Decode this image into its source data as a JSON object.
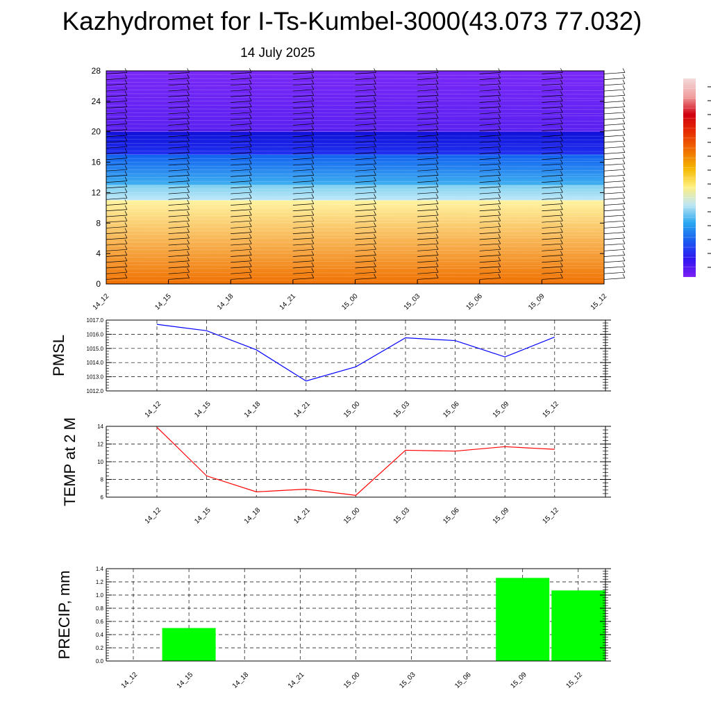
{
  "title": "Kazhydromet for I-Ts-Kumbel-3000(43.073 77.032)",
  "date": "14 July 2025",
  "time_labels": [
    "14_12",
    "14_15",
    "14_18",
    "14_21",
    "15_00",
    "15_03",
    "15_06",
    "15_09",
    "15_12"
  ],
  "chart_data": [
    {
      "type": "heatmap",
      "panel": "cross-section",
      "x": [
        "14_12",
        "14_15",
        "14_18",
        "14_21",
        "15_00",
        "15_03",
        "15_06",
        "15_09",
        "15_12"
      ],
      "ylim": [
        0,
        28
      ],
      "yticks": [
        0,
        4,
        8,
        12,
        16,
        20,
        24,
        28
      ],
      "color_bands": [
        {
          "from": 0,
          "to": 11,
          "color_bottom": "#f07000",
          "color_top": "#fff4a0"
        },
        {
          "from": 11,
          "to": 13,
          "color_bottom": "#bfe8f8",
          "color_top": "#7fd0f0"
        },
        {
          "from": 13,
          "to": 17,
          "color_bottom": "#40b0f0",
          "color_top": "#1060f0"
        },
        {
          "from": 17,
          "to": 20,
          "color_bottom": "#2030f0",
          "color_top": "#1010d8"
        },
        {
          "from": 20,
          "to": 28,
          "color_bottom": "#5a20f0",
          "color_top": "#7a28f8"
        }
      ],
      "wind_barbs": true,
      "colorbar": [
        "#7b1ff2",
        "#3016f0",
        "#1a5cf0",
        "#2aa8f0",
        "#bfe6f4",
        "#fff080",
        "#f5b800",
        "#f07000",
        "#e83000",
        "#d00010",
        "#f0a0a0",
        "#f4dada"
      ]
    },
    {
      "type": "line",
      "ylabel": "PMSL",
      "x": [
        "14_12",
        "14_15",
        "14_18",
        "14_21",
        "15_00",
        "15_03",
        "15_06",
        "15_09",
        "15_12"
      ],
      "values": [
        1016.7,
        1016.25,
        1014.9,
        1012.7,
        1013.7,
        1015.75,
        1015.55,
        1014.4,
        1015.8
      ],
      "ylim": [
        1012.0,
        1017.0
      ],
      "yticks": [
        "1012.0",
        "1013.0",
        "1014.0",
        "1015.0",
        "1016.0",
        "1017.0"
      ],
      "color": "#0000ff",
      "grid": true
    },
    {
      "type": "line",
      "ylabel": "TEMP at 2 M",
      "x": [
        "14_12",
        "14_15",
        "14_18",
        "14_21",
        "15_00",
        "15_03",
        "15_06",
        "15_09",
        "15_12"
      ],
      "values": [
        13.9,
        8.4,
        6.6,
        6.9,
        6.2,
        11.3,
        11.2,
        11.7,
        11.4
      ],
      "ylim": [
        6,
        14
      ],
      "yticks": [
        "6",
        "8",
        "10",
        "12",
        "14"
      ],
      "color": "#ff0000",
      "grid": true
    },
    {
      "type": "bar",
      "ylabel": "PRECIP, mm",
      "categories": [
        "14_12",
        "14_15",
        "14_18",
        "14_21",
        "15_00",
        "15_03",
        "15_06",
        "15_09",
        "15_12"
      ],
      "values": [
        0,
        0.5,
        0,
        0,
        0,
        0,
        0,
        1.26,
        1.07
      ],
      "ylim": [
        0,
        1.4
      ],
      "yticks": [
        "0.0",
        "0.2",
        "0.4",
        "0.6",
        "0.8",
        "1.0",
        "1.2",
        "1.4"
      ],
      "color": "#00ff00",
      "grid": true
    }
  ]
}
